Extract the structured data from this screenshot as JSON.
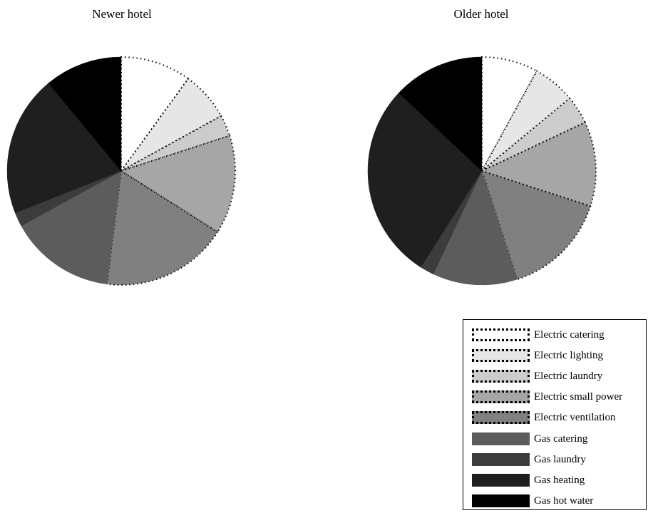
{
  "chart_data": [
    {
      "type": "pie",
      "title": "Newer hotel",
      "categories": [
        "Electric catering",
        "Electric lighting",
        "Electric laundry",
        "Electric small power",
        "Electric ventilation",
        "Gas catering",
        "Gas laundry",
        "Gas heating",
        "Gas hot water"
      ],
      "values": [
        10,
        7,
        3,
        14,
        18,
        15,
        2,
        20,
        11
      ]
    },
    {
      "type": "pie",
      "title": "Older hotel",
      "categories": [
        "Electric catering",
        "Electric lighting",
        "Electric laundry",
        "Electric small power",
        "Electric ventilation",
        "Gas catering",
        "Gas laundry",
        "Gas heating",
        "Gas hot water"
      ],
      "values": [
        8,
        6,
        4,
        12,
        15,
        12,
        2,
        28,
        13
      ]
    }
  ],
  "legend": {
    "items": [
      {
        "label": "Electric catering",
        "color": "#ffffff",
        "dotted": true
      },
      {
        "label": "Electric lighting",
        "color": "#e6e6e6",
        "dotted": true
      },
      {
        "label": "Electric laundry",
        "color": "#cccccc",
        "dotted": true
      },
      {
        "label": "Electric small power",
        "color": "#a6a6a6",
        "dotted": true
      },
      {
        "label": "Electric ventilation",
        "color": "#808080",
        "dotted": true
      },
      {
        "label": "Gas catering",
        "color": "#5c5c5c",
        "dotted": false
      },
      {
        "label": "Gas laundry",
        "color": "#3c3c3c",
        "dotted": false
      },
      {
        "label": "Gas heating",
        "color": "#1f1f1f",
        "dotted": false
      },
      {
        "label": "Gas hot water",
        "color": "#000000",
        "dotted": false
      }
    ]
  }
}
